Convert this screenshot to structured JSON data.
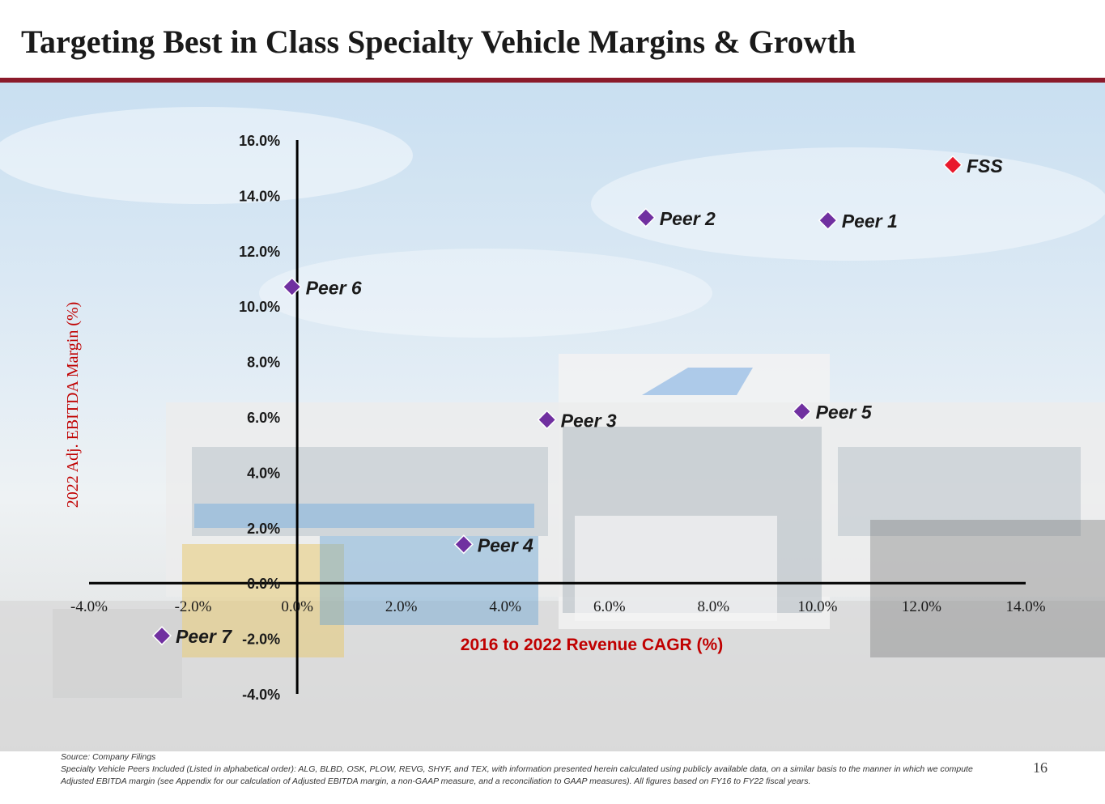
{
  "slide": {
    "title": "Targeting Best in Class Specialty Vehicle Margins & Growth",
    "page_number": "16",
    "footer": {
      "source": "Source: Company Filings",
      "note": "Specialty Vehicle Peers Included (Listed in alphabetical order): ALG, BLBD, OSK, PLOW, REVG, SHYF, and TEX, with information presented herein calculated using publicly available data, on a similar basis to the manner in which we compute Adjusted EBITDA margin (see Appendix for our calculation of Adjusted EBITDA margin, a non-GAAP measure, and a reconciliation to GAAP measures). All figures based on FY16 to FY22 fiscal years."
    }
  },
  "colors": {
    "accent_rule": "#8b1a2b",
    "peer_marker": "#7030a0",
    "fss_marker": "#e8192c",
    "axis_title": "#c00000"
  },
  "chart_data": {
    "type": "scatter",
    "title": "",
    "xlabel": "2016 to 2022 Revenue CAGR (%)",
    "ylabel": "2022 Adj. EBITDA Margin (%)",
    "xlim": [
      -4.0,
      14.0
    ],
    "ylim": [
      -4.0,
      16.0
    ],
    "x_ticks": [
      "-4.0%",
      "-2.0%",
      "0.0%",
      "2.0%",
      "4.0%",
      "6.0%",
      "8.0%",
      "10.0%",
      "12.0%",
      "14.0%"
    ],
    "y_ticks": [
      "16.0%",
      "14.0%",
      "12.0%",
      "10.0%",
      "8.0%",
      "6.0%",
      "4.0%",
      "2.0%",
      "0.0%",
      "-2.0%",
      "-4.0%"
    ],
    "grid": false,
    "points": [
      {
        "label": "FSS",
        "x": 12.6,
        "y": 15.1,
        "highlight": true
      },
      {
        "label": "Peer 1",
        "x": 10.2,
        "y": 13.1
      },
      {
        "label": "Peer 2",
        "x": 6.7,
        "y": 13.2
      },
      {
        "label": "Peer 3",
        "x": 4.8,
        "y": 5.9
      },
      {
        "label": "Peer 4",
        "x": 3.2,
        "y": 1.4
      },
      {
        "label": "Peer 5",
        "x": 9.7,
        "y": 6.2
      },
      {
        "label": "Peer 6",
        "x": -0.1,
        "y": 10.7
      },
      {
        "label": "Peer 7",
        "x": -2.6,
        "y": -1.9
      }
    ]
  }
}
